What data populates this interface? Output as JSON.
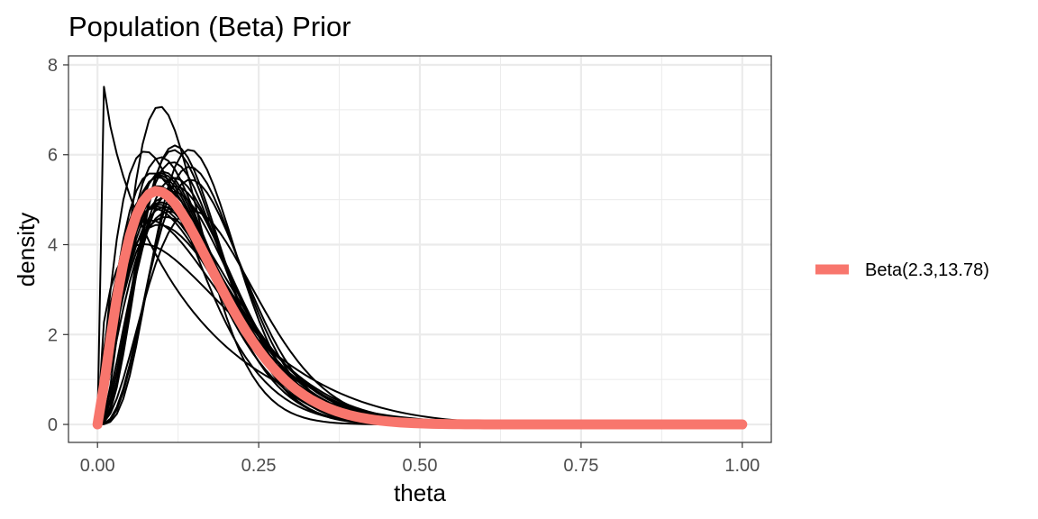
{
  "chart_data": {
    "type": "line",
    "title": "Population (Beta) Prior",
    "xlabel": "theta",
    "ylabel": "density",
    "xlim": [
      -0.045,
      1.045
    ],
    "ylim": [
      -0.4,
      8.2
    ],
    "x_ticks": [
      0,
      0.25,
      0.5,
      0.75,
      1
    ],
    "x_tick_labels": [
      "0.00",
      "0.25",
      "0.50",
      "0.75",
      "1.00"
    ],
    "y_ticks": [
      0,
      2,
      4,
      6,
      8
    ],
    "y_tick_labels": [
      "0",
      "2",
      "4",
      "6",
      "8"
    ],
    "grid": true,
    "legend_position": "right",
    "sample_curves_color": "#000000",
    "sample_curves": [
      {
        "a": 0.9,
        "b": 6.5
      },
      {
        "a": 1.5,
        "b": 7.5
      },
      {
        "a": 1.8,
        "b": 10.0
      },
      {
        "a": 2.0,
        "b": 10.5
      },
      {
        "a": 2.0,
        "b": 11.5
      },
      {
        "a": 2.1,
        "b": 12.0
      },
      {
        "a": 2.1,
        "b": 13.0
      },
      {
        "a": 2.2,
        "b": 12.5
      },
      {
        "a": 2.2,
        "b": 13.5
      },
      {
        "a": 2.3,
        "b": 12.0
      },
      {
        "a": 2.3,
        "b": 13.0
      },
      {
        "a": 2.3,
        "b": 14.0
      },
      {
        "a": 2.3,
        "b": 15.0
      },
      {
        "a": 2.4,
        "b": 13.0
      },
      {
        "a": 2.4,
        "b": 14.5
      },
      {
        "a": 2.5,
        "b": 13.0
      },
      {
        "a": 2.5,
        "b": 14.0
      },
      {
        "a": 2.5,
        "b": 15.5
      },
      {
        "a": 2.6,
        "b": 15.0
      },
      {
        "a": 2.6,
        "b": 16.0
      },
      {
        "a": 2.7,
        "b": 16.5
      },
      {
        "a": 2.8,
        "b": 17.0
      },
      {
        "a": 2.2,
        "b": 16.0
      },
      {
        "a": 2.9,
        "b": 18.5
      },
      {
        "a": 3.0,
        "b": 16.0
      },
      {
        "a": 3.2,
        "b": 17.0
      },
      {
        "a": 3.3,
        "b": 18.0
      },
      {
        "a": 3.5,
        "b": 15.5
      },
      {
        "a": 3.5,
        "b": 20.0
      },
      {
        "a": 3.6,
        "b": 25.5
      },
      {
        "a": 3.8,
        "b": 22.0
      },
      {
        "a": 4.0,
        "b": 23.0
      },
      {
        "a": 4.2,
        "b": 20.0
      },
      {
        "a": 4.5,
        "b": 22.0
      },
      {
        "a": 5.0,
        "b": 25.0
      }
    ],
    "series": [
      {
        "name": "Beta(2.3,13.78)",
        "a": 2.3,
        "b": 13.78,
        "color": "#F8766D"
      }
    ]
  }
}
